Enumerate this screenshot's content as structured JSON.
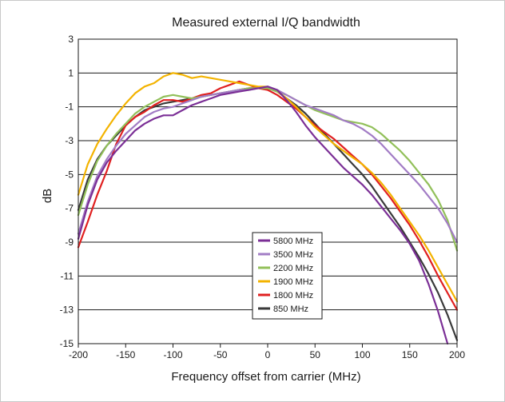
{
  "chart_data": {
    "type": "line",
    "title": "Measured external I/Q bandwidth",
    "xlabel": "Frequency offset from carrier (MHz)",
    "ylabel": "dB",
    "xlim": [
      -200,
      200
    ],
    "ylim": [
      -15,
      3
    ],
    "xticks": [
      -200,
      -150,
      -100,
      -50,
      0,
      50,
      100,
      150,
      200
    ],
    "yticks": [
      3,
      1,
      -1,
      -3,
      -5,
      -7,
      -9,
      -11,
      -13,
      -15
    ],
    "grid": true,
    "legend": "bottom-center",
    "series": [
      {
        "name": "5800 MHz",
        "color": "#7b2f96",
        "x": [
          -200,
          -190,
          -180,
          -170,
          -160,
          -150,
          -140,
          -130,
          -120,
          -110,
          -100,
          -90,
          -80,
          -70,
          -60,
          -50,
          -40,
          -30,
          -20,
          -10,
          0,
          10,
          20,
          30,
          40,
          50,
          60,
          70,
          80,
          90,
          100,
          110,
          120,
          130,
          140,
          150,
          160,
          170,
          180,
          190
        ],
        "y": [
          -8.8,
          -6.8,
          -5.3,
          -4.3,
          -3.6,
          -3.0,
          -2.4,
          -2.0,
          -1.7,
          -1.5,
          -1.5,
          -1.2,
          -0.9,
          -0.7,
          -0.5,
          -0.3,
          -0.2,
          -0.1,
          0.0,
          0.1,
          0.2,
          0.0,
          -0.6,
          -1.3,
          -2.1,
          -2.8,
          -3.4,
          -4.0,
          -4.6,
          -5.1,
          -5.6,
          -6.2,
          -6.9,
          -7.6,
          -8.3,
          -9.1,
          -10.1,
          -11.5,
          -13.1,
          -15.0
        ]
      },
      {
        "name": "3500 MHz",
        "color": "#a27cc5",
        "x": [
          -200,
          -190,
          -180,
          -170,
          -160,
          -150,
          -140,
          -130,
          -120,
          -110,
          -100,
          -90,
          -80,
          -70,
          -60,
          -50,
          -40,
          -30,
          -20,
          -10,
          0,
          10,
          20,
          30,
          40,
          50,
          60,
          70,
          80,
          90,
          100,
          110,
          120,
          130,
          140,
          150,
          160,
          170,
          180,
          190,
          200
        ],
        "y": [
          -8.5,
          -6.6,
          -5.1,
          -4.1,
          -3.3,
          -2.6,
          -2.1,
          -1.6,
          -1.3,
          -1.1,
          -1.0,
          -0.8,
          -0.6,
          -0.4,
          -0.3,
          -0.2,
          -0.1,
          0.0,
          0.0,
          0.1,
          0.2,
          0.0,
          -0.3,
          -0.6,
          -0.9,
          -1.1,
          -1.3,
          -1.5,
          -1.8,
          -2.0,
          -2.3,
          -2.7,
          -3.2,
          -3.8,
          -4.4,
          -5.0,
          -5.6,
          -6.3,
          -7.0,
          -7.9,
          -9.0
        ]
      },
      {
        "name": "2200 MHz",
        "color": "#92c05a",
        "x": [
          -200,
          -190,
          -180,
          -170,
          -160,
          -150,
          -140,
          -130,
          -120,
          -110,
          -100,
          -90,
          -80,
          -70,
          -60,
          -50,
          -40,
          -30,
          -20,
          -10,
          0,
          10,
          20,
          30,
          40,
          50,
          60,
          70,
          80,
          90,
          100,
          110,
          120,
          130,
          140,
          150,
          160,
          170,
          180,
          190,
          200
        ],
        "y": [
          -7.4,
          -5.6,
          -4.2,
          -3.3,
          -2.6,
          -2.0,
          -1.4,
          -1.0,
          -0.7,
          -0.4,
          -0.3,
          -0.4,
          -0.5,
          -0.4,
          -0.3,
          -0.2,
          -0.1,
          0.0,
          0.1,
          0.1,
          0.1,
          -0.1,
          -0.3,
          -0.6,
          -0.9,
          -1.2,
          -1.4,
          -1.6,
          -1.8,
          -1.9,
          -2.0,
          -2.2,
          -2.6,
          -3.1,
          -3.6,
          -4.2,
          -4.9,
          -5.6,
          -6.5,
          -7.7,
          -9.5
        ]
      },
      {
        "name": "1900 MHz",
        "color": "#f3b300",
        "x": [
          -200,
          -190,
          -180,
          -170,
          -160,
          -150,
          -140,
          -130,
          -120,
          -110,
          -100,
          -90,
          -80,
          -70,
          -60,
          -50,
          -40,
          -30,
          -20,
          -10,
          0,
          10,
          20,
          30,
          40,
          50,
          60,
          70,
          80,
          90,
          100,
          110,
          120,
          130,
          140,
          150,
          160,
          170,
          180,
          190,
          200
        ],
        "y": [
          -6.2,
          -4.4,
          -3.2,
          -2.3,
          -1.5,
          -0.8,
          -0.2,
          0.2,
          0.4,
          0.8,
          1.0,
          0.9,
          0.7,
          0.8,
          0.7,
          0.6,
          0.5,
          0.4,
          0.3,
          0.2,
          0.2,
          -0.1,
          -0.5,
          -1.0,
          -1.6,
          -2.2,
          -2.7,
          -3.2,
          -3.6,
          -4.0,
          -4.4,
          -4.9,
          -5.5,
          -6.2,
          -7.0,
          -7.8,
          -8.6,
          -9.5,
          -10.5,
          -11.5,
          -12.5
        ]
      },
      {
        "name": "1800 MHz",
        "color": "#e02020",
        "x": [
          -200,
          -190,
          -180,
          -170,
          -160,
          -150,
          -140,
          -130,
          -120,
          -110,
          -100,
          -90,
          -80,
          -70,
          -60,
          -50,
          -40,
          -30,
          -20,
          -10,
          0,
          10,
          20,
          30,
          40,
          50,
          60,
          70,
          80,
          90,
          100,
          110,
          120,
          130,
          140,
          150,
          160,
          170,
          180,
          190,
          200
        ],
        "y": [
          -9.3,
          -7.8,
          -6.2,
          -4.8,
          -3.2,
          -2.1,
          -1.6,
          -1.3,
          -0.9,
          -0.6,
          -0.6,
          -0.7,
          -0.5,
          -0.3,
          -0.2,
          0.1,
          0.3,
          0.5,
          0.3,
          0.1,
          0.0,
          -0.3,
          -0.7,
          -1.1,
          -1.6,
          -2.1,
          -2.5,
          -2.9,
          -3.4,
          -3.9,
          -4.4,
          -5.0,
          -5.7,
          -6.4,
          -7.2,
          -8.0,
          -8.9,
          -9.9,
          -11.0,
          -12.0,
          -13.0
        ]
      },
      {
        "name": "850 MHz",
        "color": "#3a3a3a",
        "x": [
          -200,
          -190,
          -180,
          -170,
          -160,
          -150,
          -140,
          -130,
          -120,
          -110,
          -100,
          -90,
          -80,
          -70,
          -60,
          -50,
          -40,
          -30,
          -20,
          -10,
          0,
          10,
          20,
          30,
          40,
          50,
          60,
          70,
          80,
          90,
          100,
          110,
          120,
          130,
          140,
          150,
          160,
          170,
          180,
          190,
          200
        ],
        "y": [
          -7.1,
          -5.3,
          -4.1,
          -3.3,
          -2.7,
          -2.1,
          -1.6,
          -1.2,
          -1.0,
          -0.8,
          -0.7,
          -0.6,
          -0.5,
          -0.4,
          -0.3,
          -0.2,
          -0.1,
          0.0,
          0.1,
          0.1,
          0.1,
          -0.1,
          -0.5,
          -0.9,
          -1.4,
          -2.0,
          -2.6,
          -3.2,
          -3.8,
          -4.4,
          -5.0,
          -5.7,
          -6.5,
          -7.3,
          -8.1,
          -9.0,
          -9.9,
          -10.9,
          -12.0,
          -13.3,
          -14.8
        ]
      }
    ]
  }
}
